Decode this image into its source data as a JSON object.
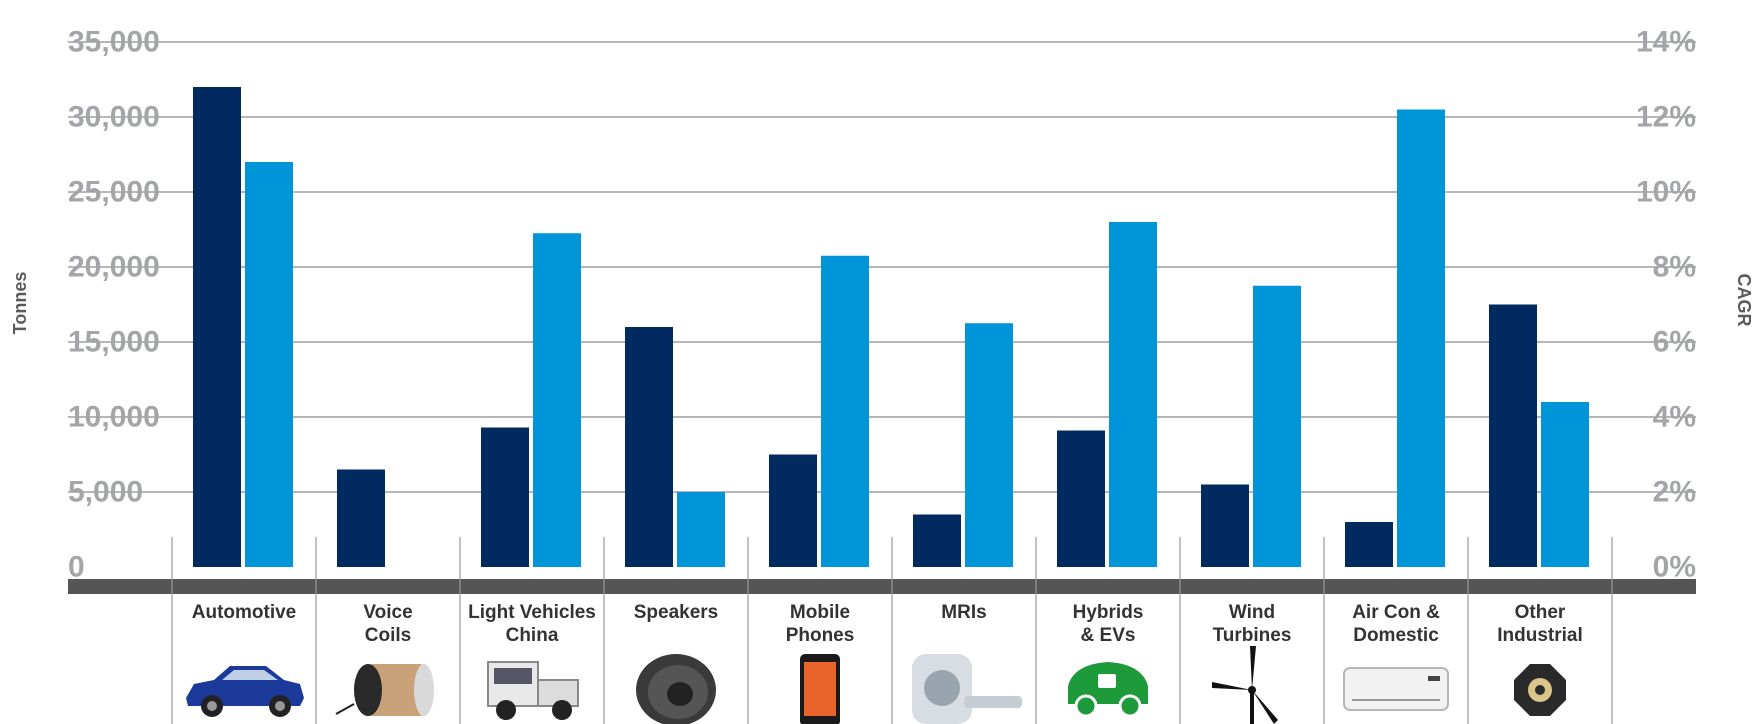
{
  "chart_data": {
    "type": "bar",
    "categories": [
      [
        "Automotive"
      ],
      [
        "Voice",
        "Coils"
      ],
      [
        "Light Vehicles",
        "China"
      ],
      [
        "Speakers"
      ],
      [
        "Mobile",
        "Phones"
      ],
      [
        "MRIs"
      ],
      [
        "Hybrids",
        "& EVs"
      ],
      [
        "Wind",
        "Turbines"
      ],
      [
        "Air Con &",
        "Domestic"
      ],
      [
        "Other",
        "Industrial"
      ]
    ],
    "category_icons": [
      "car-icon",
      "voice-coil-icon",
      "truck-icon",
      "speaker-icon",
      "phone-icon",
      "mri-icon",
      "eco-car-icon",
      "wind-turbine-icon",
      "air-conditioner-icon",
      "industrial-part-icon"
    ],
    "series": [
      {
        "axis": "left",
        "values": [
          32000,
          6500,
          9300,
          16000,
          7500,
          3500,
          9100,
          5500,
          3000,
          17500
        ]
      },
      {
        "axis": "right",
        "values": [
          10.8,
          0,
          8.9,
          2.0,
          8.3,
          6.5,
          9.2,
          7.5,
          12.2,
          4.4
        ]
      }
    ],
    "colors": [
      "#002a60",
      "#0095d8"
    ],
    "ylabel": "Tonnes",
    "y2label": "CAGR",
    "ylim": [
      0,
      35000
    ],
    "y2lim": [
      0,
      14
    ],
    "yticks": [
      "0",
      "5,000",
      "10,000",
      "15,000",
      "20,000",
      "25,000",
      "30,000",
      "35,000"
    ],
    "y2ticks": [
      "0%",
      "2%",
      "4%",
      "6%",
      "8%",
      "10%",
      "12%",
      "14%"
    ],
    "grid": true,
    "legend": "none"
  }
}
